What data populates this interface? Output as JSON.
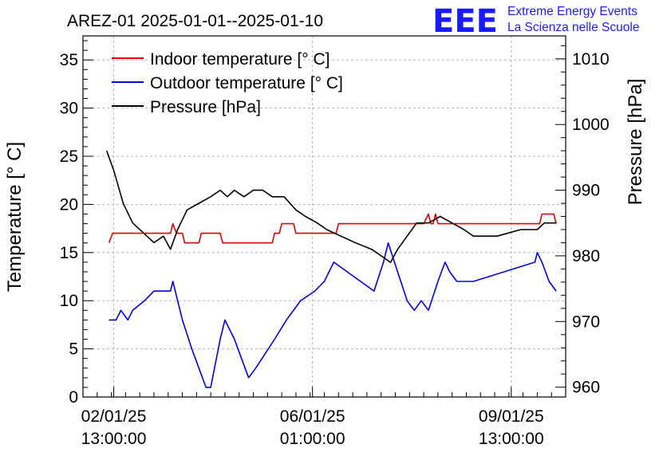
{
  "header": {
    "title": "AREZ-01 2025-01-01--2025-01-10",
    "logo_text": "EEE",
    "logo_line1": "Extreme Energy Events",
    "logo_line2": "La Scienza nelle Scuole"
  },
  "colors": {
    "indoor": "#e00000",
    "outdoor": "#0000e0",
    "pressure": "#000000",
    "logo": "#1a1aff"
  },
  "chart_data": {
    "type": "line",
    "title": "AREZ-01 2025-01-01--2025-01-10",
    "xlabel": "",
    "ylabel": "Temperature [° C]",
    "y2label": "Pressure [hPa]",
    "xlim": [
      "2025-01-02 00:00",
      "2025-01-10 12:00"
    ],
    "ylim": [
      0,
      37.5
    ],
    "y2lim": [
      958.5,
      1013.5
    ],
    "grid": true,
    "legend_position": "top-left",
    "x_ticks": [
      {
        "x": "2025-01-02 13:00",
        "line1": "02/01/25",
        "line2": "13:00:00"
      },
      {
        "x": "2025-01-06 01:00",
        "line1": "06/01/25",
        "line2": "01:00:00"
      },
      {
        "x": "2025-01-09 13:00",
        "line1": "09/01/25",
        "line2": "13:00:00"
      }
    ],
    "y_ticks": [
      "0",
      "5",
      "10",
      "15",
      "20",
      "25",
      "30",
      "35"
    ],
    "y2_ticks": [
      "960",
      "970",
      "980",
      "990",
      "1000",
      "1010"
    ],
    "series": [
      {
        "name": "Indoor temperature [° C]",
        "axis": "left",
        "points": [
          [
            "2025-01-02 11:00",
            16
          ],
          [
            "2025-01-02 12:30",
            17
          ],
          [
            "2025-01-03 13:00",
            17
          ],
          [
            "2025-01-03 14:00",
            18
          ],
          [
            "2025-01-03 15:30",
            17
          ],
          [
            "2025-01-03 18:00",
            17
          ],
          [
            "2025-01-03 19:00",
            16
          ],
          [
            "2025-01-04 01:00",
            16
          ],
          [
            "2025-01-04 02:00",
            17
          ],
          [
            "2025-01-04 10:00",
            17
          ],
          [
            "2025-01-04 11:00",
            16
          ],
          [
            "2025-01-05 08:00",
            16
          ],
          [
            "2025-01-05 09:00",
            17
          ],
          [
            "2025-01-05 11:00",
            17
          ],
          [
            "2025-01-05 12:00",
            18
          ],
          [
            "2025-01-05 17:00",
            18
          ],
          [
            "2025-01-05 18:00",
            17
          ],
          [
            "2025-01-06 11:00",
            17
          ],
          [
            "2025-01-06 12:00",
            18
          ],
          [
            "2025-01-08 00:00",
            18
          ],
          [
            "2025-01-08 02:00",
            19
          ],
          [
            "2025-01-08 03:00",
            18
          ],
          [
            "2025-01-08 04:00",
            18
          ],
          [
            "2025-01-08 05:00",
            19
          ],
          [
            "2025-01-08 06:00",
            18
          ],
          [
            "2025-01-10 01:00",
            18
          ],
          [
            "2025-01-10 02:00",
            19
          ],
          [
            "2025-01-10 07:00",
            19
          ],
          [
            "2025-01-10 08:00",
            18
          ]
        ]
      },
      {
        "name": "Outdoor temperature [° C]",
        "axis": "left",
        "points": [
          [
            "2025-01-02 11:00",
            8
          ],
          [
            "2025-01-02 14:00",
            8
          ],
          [
            "2025-01-02 16:00",
            9
          ],
          [
            "2025-01-02 19:00",
            8
          ],
          [
            "2025-01-02 21:00",
            9
          ],
          [
            "2025-01-03 02:00",
            10
          ],
          [
            "2025-01-03 06:00",
            11
          ],
          [
            "2025-01-03 13:00",
            11
          ],
          [
            "2025-01-03 14:00",
            12
          ],
          [
            "2025-01-03 18:00",
            8
          ],
          [
            "2025-01-03 22:00",
            5
          ],
          [
            "2025-01-04 04:00",
            1
          ],
          [
            "2025-01-04 06:00",
            1
          ],
          [
            "2025-01-04 10:00",
            6
          ],
          [
            "2025-01-04 12:00",
            8
          ],
          [
            "2025-01-04 16:00",
            6
          ],
          [
            "2025-01-04 22:00",
            2
          ],
          [
            "2025-01-05 01:00",
            3
          ],
          [
            "2025-01-05 09:00",
            6
          ],
          [
            "2025-01-05 14:00",
            8
          ],
          [
            "2025-01-05 20:00",
            10
          ],
          [
            "2025-01-06 02:00",
            11
          ],
          [
            "2025-01-06 06:00",
            12
          ],
          [
            "2025-01-06 10:00",
            14
          ],
          [
            "2025-01-07 03:00",
            11
          ],
          [
            "2025-01-07 07:00",
            14
          ],
          [
            "2025-01-07 09:00",
            16
          ],
          [
            "2025-01-07 13:00",
            13
          ],
          [
            "2025-01-07 17:00",
            10
          ],
          [
            "2025-01-07 20:00",
            9
          ],
          [
            "2025-01-07 23:00",
            10
          ],
          [
            "2025-01-08 02:00",
            9
          ],
          [
            "2025-01-08 06:00",
            12
          ],
          [
            "2025-01-08 09:00",
            14
          ],
          [
            "2025-01-08 11:00",
            13
          ],
          [
            "2025-01-08 14:00",
            12
          ],
          [
            "2025-01-08 21:00",
            12
          ],
          [
            "2025-01-09 23:00",
            14
          ],
          [
            "2025-01-10 00:00",
            15
          ],
          [
            "2025-01-10 02:00",
            14
          ],
          [
            "2025-01-10 05:00",
            12
          ],
          [
            "2025-01-10 08:00",
            11
          ]
        ]
      },
      {
        "name": "Pressure [hPa]",
        "axis": "right",
        "points": [
          [
            "2025-01-02 10:00",
            996
          ],
          [
            "2025-01-02 13:00",
            993
          ],
          [
            "2025-01-02 17:00",
            988
          ],
          [
            "2025-01-02 21:00",
            985
          ],
          [
            "2025-01-03 03:00",
            983
          ],
          [
            "2025-01-03 06:00",
            982
          ],
          [
            "2025-01-03 10:00",
            983
          ],
          [
            "2025-01-03 13:00",
            981
          ],
          [
            "2025-01-03 16:00",
            984
          ],
          [
            "2025-01-03 20:00",
            987
          ],
          [
            "2025-01-04 01:00",
            988
          ],
          [
            "2025-01-04 06:00",
            989
          ],
          [
            "2025-01-04 10:00",
            990
          ],
          [
            "2025-01-04 13:00",
            989
          ],
          [
            "2025-01-04 16:00",
            990
          ],
          [
            "2025-01-04 20:00",
            989
          ],
          [
            "2025-01-05 00:00",
            990
          ],
          [
            "2025-01-05 04:00",
            990
          ],
          [
            "2025-01-05 08:00",
            989
          ],
          [
            "2025-01-05 13:00",
            989
          ],
          [
            "2025-01-05 18:00",
            987
          ],
          [
            "2025-01-05 22:00",
            986
          ],
          [
            "2025-01-06 03:00",
            985
          ],
          [
            "2025-01-06 07:00",
            984
          ],
          [
            "2025-01-06 13:00",
            983
          ],
          [
            "2025-01-06 19:00",
            982
          ],
          [
            "2025-01-07 02:00",
            981
          ],
          [
            "2025-01-07 06:00",
            980
          ],
          [
            "2025-01-07 10:00",
            979
          ],
          [
            "2025-01-07 13:00",
            981
          ],
          [
            "2025-01-07 17:00",
            983
          ],
          [
            "2025-01-07 21:00",
            985
          ],
          [
            "2025-01-08 02:00",
            985
          ],
          [
            "2025-01-08 07:00",
            986
          ],
          [
            "2025-01-08 12:00",
            985
          ],
          [
            "2025-01-08 17:00",
            984
          ],
          [
            "2025-01-08 21:00",
            983
          ],
          [
            "2025-01-09 07:00",
            983
          ],
          [
            "2025-01-09 17:00",
            984
          ],
          [
            "2025-01-10 00:00",
            984
          ],
          [
            "2025-01-10 03:00",
            985
          ],
          [
            "2025-01-10 08:00",
            985
          ]
        ]
      }
    ]
  }
}
